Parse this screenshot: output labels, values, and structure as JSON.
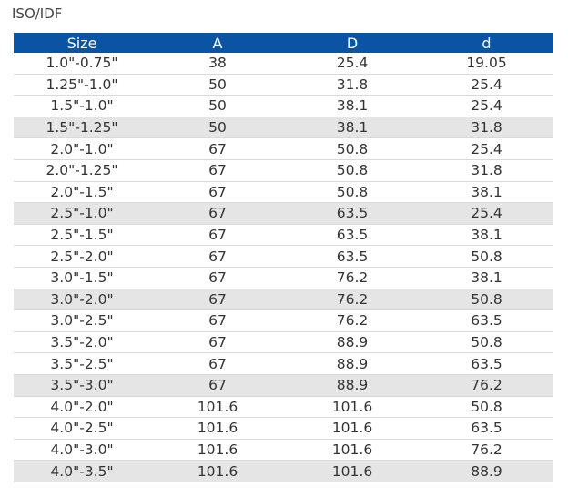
{
  "title": "ISO/IDF",
  "columns": [
    "Size",
    "A",
    "D",
    "d"
  ],
  "rows": [
    {
      "size": "1.0\"-0.75\"",
      "a": "38",
      "d_outer": "25.4",
      "d_inner": "19.05",
      "shaded": false
    },
    {
      "size": "1.25\"-1.0\"",
      "a": "50",
      "d_outer": "31.8",
      "d_inner": "25.4",
      "shaded": false
    },
    {
      "size": "1.5\"-1.0\"",
      "a": "50",
      "d_outer": "38.1",
      "d_inner": "25.4",
      "shaded": false
    },
    {
      "size": "1.5\"-1.25\"",
      "a": "50",
      "d_outer": "38.1",
      "d_inner": "31.8",
      "shaded": true
    },
    {
      "size": "2.0\"-1.0\"",
      "a": "67",
      "d_outer": "50.8",
      "d_inner": "25.4",
      "shaded": false
    },
    {
      "size": "2.0\"-1.25\"",
      "a": "67",
      "d_outer": "50.8",
      "d_inner": "31.8",
      "shaded": false
    },
    {
      "size": "2.0\"-1.5\"",
      "a": "67",
      "d_outer": "50.8",
      "d_inner": "38.1",
      "shaded": false
    },
    {
      "size": "2.5\"-1.0\"",
      "a": "67",
      "d_outer": "63.5",
      "d_inner": "25.4",
      "shaded": true
    },
    {
      "size": "2.5\"-1.5\"",
      "a": "67",
      "d_outer": "63.5",
      "d_inner": "38.1",
      "shaded": false
    },
    {
      "size": "2.5\"-2.0\"",
      "a": "67",
      "d_outer": "63.5",
      "d_inner": "50.8",
      "shaded": false
    },
    {
      "size": "3.0\"-1.5\"",
      "a": "67",
      "d_outer": "76.2",
      "d_inner": "38.1",
      "shaded": false
    },
    {
      "size": "3.0\"-2.0\"",
      "a": "67",
      "d_outer": "76.2",
      "d_inner": "50.8",
      "shaded": true
    },
    {
      "size": "3.0\"-2.5\"",
      "a": "67",
      "d_outer": "76.2",
      "d_inner": "63.5",
      "shaded": false
    },
    {
      "size": "3.5\"-2.0\"",
      "a": "67",
      "d_outer": "88.9",
      "d_inner": "50.8",
      "shaded": false
    },
    {
      "size": "3.5\"-2.5\"",
      "a": "67",
      "d_outer": "88.9",
      "d_inner": "63.5",
      "shaded": false
    },
    {
      "size": "3.5\"-3.0\"",
      "a": "67",
      "d_outer": "88.9",
      "d_inner": "76.2",
      "shaded": true
    },
    {
      "size": "4.0\"-2.0\"",
      "a": "101.6",
      "d_outer": "101.6",
      "d_inner": "50.8",
      "shaded": false
    },
    {
      "size": "4.0\"-2.5\"",
      "a": "101.6",
      "d_outer": "101.6",
      "d_inner": "63.5",
      "shaded": false
    },
    {
      "size": "4.0\"-3.0\"",
      "a": "101.6",
      "d_outer": "101.6",
      "d_inner": "76.2",
      "shaded": false
    },
    {
      "size": "4.0\"-3.5\"",
      "a": "101.6",
      "d_outer": "101.6",
      "d_inner": "88.9",
      "shaded": true
    }
  ],
  "colors": {
    "header_bg": "#0b54a3",
    "header_text": "#ffffff",
    "shaded_row": "#e5e5e5",
    "row_divider": "#d9d9d9"
  }
}
